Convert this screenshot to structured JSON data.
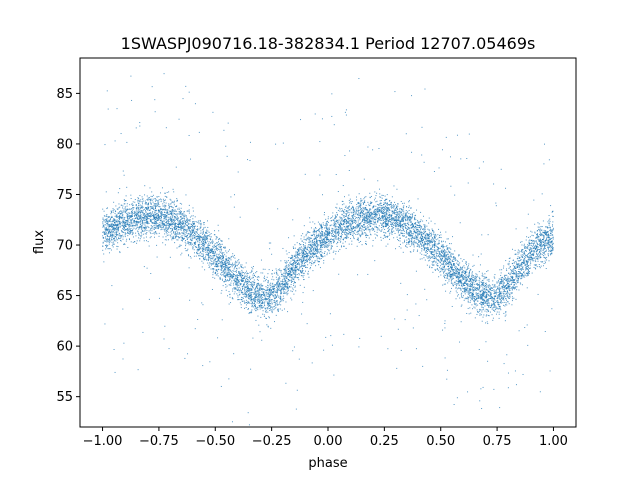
{
  "chart_data": {
    "type": "scatter",
    "title": "1SWASPJ090716.18-382834.1 Period 12707.05469s",
    "xlabel": "phase",
    "ylabel": "flux",
    "xlim": [
      -1.1,
      1.1
    ],
    "ylim": [
      52,
      88.5
    ],
    "xticks": [
      -1.0,
      -0.75,
      -0.5,
      -0.25,
      0.0,
      0.25,
      0.5,
      0.75,
      1.0
    ],
    "xtick_labels": [
      "−1.00",
      "−0.75",
      "−0.50",
      "−0.25",
      "0.00",
      "0.25",
      "0.50",
      "0.75",
      "1.00"
    ],
    "yticks": [
      55,
      60,
      65,
      70,
      75,
      80,
      85
    ],
    "ytick_labels": [
      "55",
      "60",
      "65",
      "70",
      "75",
      "80",
      "85"
    ],
    "grid": false,
    "legend": "none",
    "point_color": "#1f77b4",
    "series": [
      {
        "trend_x": [
          -1.0,
          -0.9,
          -0.8,
          -0.75,
          -0.7,
          -0.6,
          -0.5,
          -0.4,
          -0.3,
          -0.25,
          -0.2,
          -0.1,
          0.0,
          0.1,
          0.2,
          0.25,
          0.3,
          0.4,
          0.5,
          0.6,
          0.7,
          0.75,
          0.8,
          0.9,
          1.0
        ],
        "trend_y": [
          71.3,
          72.3,
          72.9,
          72.9,
          72.6,
          71.2,
          69.0,
          66.5,
          64.8,
          64.9,
          66.0,
          69.2,
          71.0,
          72.3,
          72.9,
          72.9,
          72.6,
          71.2,
          69.0,
          66.5,
          64.8,
          64.9,
          66.0,
          69.2,
          71.0
        ],
        "scatter_sigma": 1.0
      }
    ]
  }
}
